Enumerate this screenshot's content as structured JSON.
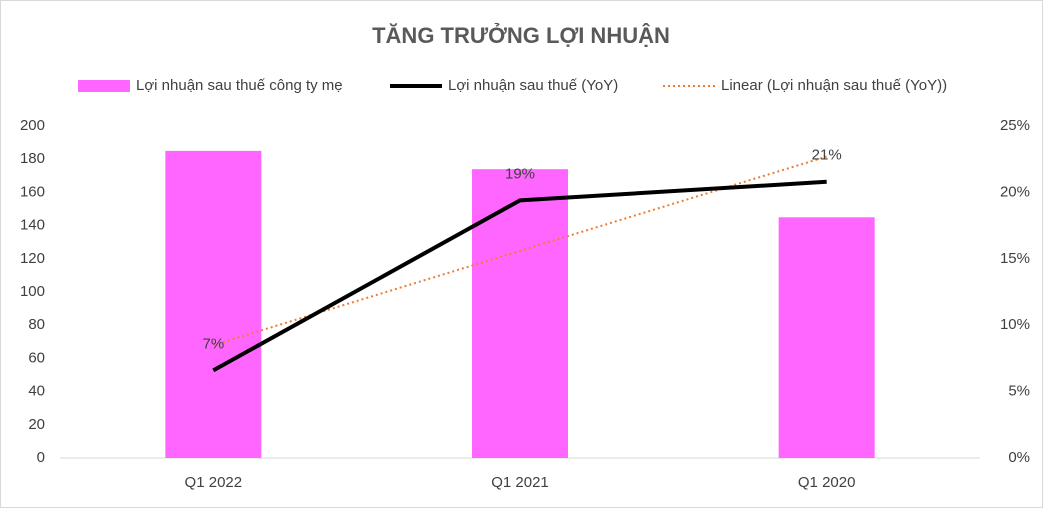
{
  "chart_data": {
    "type": "bar-line",
    "title": "TĂNG TRƯỞNG LỢI NHUẬN",
    "categories": [
      "Q1 2022",
      "Q1 2021",
      "Q1 2020"
    ],
    "series": [
      {
        "name": "Lợi nhuận sau thuế công ty mẹ",
        "type": "bar",
        "color": "#ff66ff",
        "values": [
          185,
          174,
          145
        ]
      },
      {
        "name": "Lợi nhuận sau thuế (YoY)",
        "type": "line",
        "axis": "y2",
        "color": "#000000",
        "values": [
          6.6,
          19.4,
          20.8
        ],
        "value_labels": [
          "7%",
          "19%",
          "21%"
        ]
      },
      {
        "name": "Linear (Lợi nhuận sau thuế (YoY))",
        "type": "trend",
        "axis": "y2",
        "color": "#ed7d31",
        "values": [
          8.5,
          15.6,
          22.7
        ]
      }
    ],
    "ylim": [
      0,
      200
    ],
    "yticks": [
      0,
      20,
      40,
      60,
      80,
      100,
      120,
      140,
      160,
      180,
      200
    ],
    "y2lim": [
      0,
      25
    ],
    "y2ticks": [
      {
        "value": 0,
        "label": "0%"
      },
      {
        "value": 5,
        "label": "5%"
      },
      {
        "value": 10,
        "label": "10%"
      },
      {
        "value": 15,
        "label": "15%"
      },
      {
        "value": 20,
        "label": "20%"
      },
      {
        "value": 25,
        "label": "25%"
      }
    ],
    "legend": "top",
    "grid": false
  }
}
